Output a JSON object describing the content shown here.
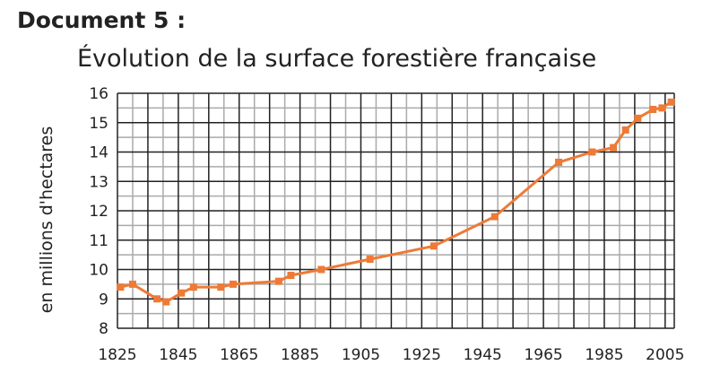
{
  "document_label": "Document 5 :",
  "chart_data": {
    "type": "line",
    "title": "Évolution de la surface forestière française",
    "xlabel": "",
    "ylabel": "en millions d'hectares",
    "xlim": [
      1825,
      2008
    ],
    "ylim": [
      8,
      16
    ],
    "x_ticks": [
      1825,
      1845,
      1865,
      1885,
      1905,
      1925,
      1945,
      1965,
      1985,
      2005
    ],
    "y_ticks": [
      8,
      9,
      10,
      11,
      12,
      13,
      14,
      15,
      16
    ],
    "grid": true,
    "series": [
      {
        "points": [
          [
            1826,
            9.4
          ],
          [
            1830,
            9.5
          ],
          [
            1838,
            9.0
          ],
          [
            1841,
            8.9
          ],
          [
            1846,
            9.2
          ],
          [
            1850,
            9.4
          ],
          [
            1859,
            9.4
          ],
          [
            1863,
            9.5
          ],
          [
            1878,
            9.6
          ],
          [
            1882,
            9.8
          ],
          [
            1892,
            10.0
          ],
          [
            1908,
            10.35
          ],
          [
            1929,
            10.8
          ],
          [
            1949,
            11.8
          ],
          [
            1970,
            13.65
          ],
          [
            1981,
            14.0
          ],
          [
            1988,
            14.15
          ],
          [
            1992,
            14.75
          ],
          [
            1996,
            15.15
          ],
          [
            2001,
            15.45
          ],
          [
            2004,
            15.5
          ],
          [
            2007,
            15.7
          ]
        ]
      }
    ],
    "line_color": "#ee7a36",
    "grid_color_major": "#222222",
    "grid_color_minor": "#aaaaaa"
  }
}
